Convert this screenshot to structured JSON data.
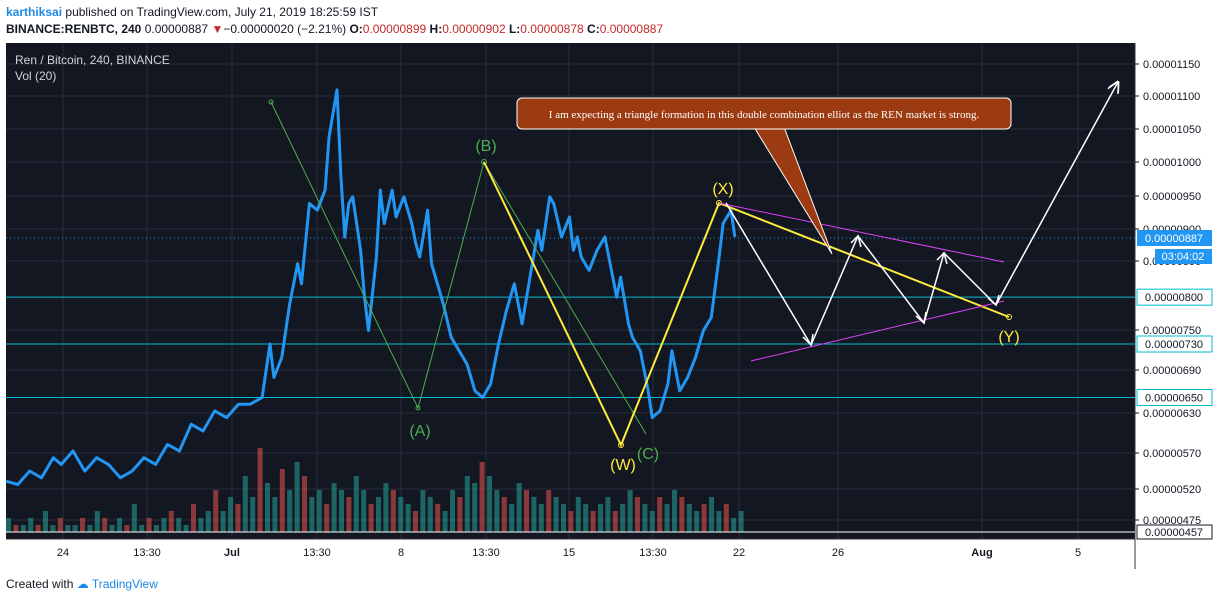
{
  "header": {
    "author": "karthiksai",
    "published_text": "published on TradingView.com, July 21, 2019 18:25:59 IST",
    "symbol": "BINANCE:RENBTC, 240",
    "last": "0.00000887",
    "change_arrow": "▼",
    "change": "−0.00000020 (−2.21%)",
    "o_label": "O:",
    "o": "0.00000899",
    "h_label": "H:",
    "h": "0.00000902",
    "l_label": "L:",
    "l": "0.00000878",
    "c_label": "C:",
    "c": "0.00000887"
  },
  "legend": {
    "title": "Ren / Bitcoin, 240, BINANCE",
    "volume": "Vol (20)"
  },
  "colors": {
    "price": "#2196f3",
    "wave_green": "#4caf50",
    "wave_yellow": "#ffeb3b",
    "triangle": "#e040fb",
    "support": "#00bcd4",
    "vol_up": "#26a69a",
    "vol_down": "#ef5350",
    "callout": "#9c3a12",
    "background": "#131722"
  },
  "chart_data": {
    "type": "line",
    "title": "Ren / Bitcoin, 240, BINANCE",
    "x_ticks": [
      "24",
      "13:30",
      "Jul",
      "13:30",
      "8",
      "13:30",
      "15",
      "13:30",
      "22",
      "26",
      "Aug",
      "5"
    ],
    "y_ticks": [
      "0.00001150",
      "0.00001100",
      "0.00001050",
      "0.00001000",
      "0.00000950",
      "0.00000900",
      "0.00000850",
      "0.00000750",
      "0.00000690",
      "0.00000630",
      "0.00000570",
      "0.00000520",
      "0.00000475"
    ],
    "ylim": [
      4.57e-06,
      1.18e-05
    ],
    "price_series": [
      [
        0,
        5.25e-06
      ],
      [
        3,
        5.2e-06
      ],
      [
        6,
        5.4e-06
      ],
      [
        9,
        5.3e-06
      ],
      [
        12,
        5.6e-06
      ],
      [
        14,
        5.5e-06
      ],
      [
        17,
        5.7e-06
      ],
      [
        20,
        5.4e-06
      ],
      [
        23,
        5.6e-06
      ],
      [
        26,
        5.5e-06
      ],
      [
        29,
        5.3e-06
      ],
      [
        32,
        5.4e-06
      ],
      [
        35,
        5.6e-06
      ],
      [
        38,
        5.5e-06
      ],
      [
        41,
        5.8e-06
      ],
      [
        44,
        5.7e-06
      ],
      [
        47,
        6.1e-06
      ],
      [
        50,
        6e-06
      ],
      [
        53,
        6.3e-06
      ],
      [
        56,
        6.2e-06
      ],
      [
        59,
        6.4e-06
      ],
      [
        62,
        6.4e-06
      ],
      [
        65,
        6.5e-06
      ],
      [
        67,
        7.3e-06
      ],
      [
        68,
        6.8e-06
      ],
      [
        70,
        7.1e-06
      ],
      [
        72,
        7.9e-06
      ],
      [
        74,
        8.5e-06
      ],
      [
        75,
        8.2e-06
      ],
      [
        77,
        9.4e-06
      ],
      [
        79,
        9.3e-06
      ],
      [
        81,
        9.6e-06
      ],
      [
        82,
        1.04e-05
      ],
      [
        84,
        1.11e-05
      ],
      [
        85,
        9.8e-06
      ],
      [
        86,
        8.9e-06
      ],
      [
        87,
        9.4e-06
      ],
      [
        88,
        9.5e-06
      ],
      [
        90,
        8.7e-06
      ],
      [
        91,
        8e-06
      ],
      [
        92,
        7.5e-06
      ],
      [
        94,
        8.6e-06
      ],
      [
        95,
        9.6e-06
      ],
      [
        96,
        9.1e-06
      ],
      [
        98,
        9.6e-06
      ],
      [
        99,
        9.2e-06
      ],
      [
        101,
        9.5e-06
      ],
      [
        103,
        9.1e-06
      ],
      [
        104,
        8.8e-06
      ],
      [
        105,
        8.6e-06
      ],
      [
        107,
        9.3e-06
      ],
      [
        108,
        8.5e-06
      ],
      [
        110,
        8.1e-06
      ],
      [
        111,
        7.9e-06
      ],
      [
        113,
        7.4e-06
      ],
      [
        115,
        7.2e-06
      ],
      [
        117,
        7e-06
      ],
      [
        119,
        6.6e-06
      ],
      [
        121,
        6.5e-06
      ],
      [
        123,
        6.7e-06
      ],
      [
        125,
        7.3e-06
      ],
      [
        127,
        7.8e-06
      ],
      [
        129,
        8.2e-06
      ],
      [
        131,
        7.6e-06
      ],
      [
        133,
        8.3e-06
      ],
      [
        135,
        9e-06
      ],
      [
        136,
        8.7e-06
      ],
      [
        138,
        9.5e-06
      ],
      [
        139,
        9.4e-06
      ],
      [
        141,
        8.9e-06
      ],
      [
        143,
        9.2e-06
      ],
      [
        144,
        8.7e-06
      ],
      [
        145,
        8.9e-06
      ],
      [
        146,
        8.6e-06
      ],
      [
        148,
        8.4e-06
      ],
      [
        150,
        8.7e-06
      ],
      [
        152,
        8.9e-06
      ],
      [
        153,
        8.6e-06
      ],
      [
        155,
        8e-06
      ],
      [
        156,
        8.3e-06
      ],
      [
        158,
        7.6e-06
      ],
      [
        159,
        7.4e-06
      ],
      [
        161,
        7.2e-06
      ],
      [
        163,
        6.6e-06
      ],
      [
        164,
        6.2e-06
      ],
      [
        166,
        6.3e-06
      ],
      [
        168,
        6.7e-06
      ],
      [
        169,
        7.2e-06
      ],
      [
        171,
        6.6e-06
      ],
      [
        173,
        6.8e-06
      ],
      [
        175,
        7.1e-06
      ],
      [
        177,
        7.5e-06
      ],
      [
        179,
        7.7e-06
      ],
      [
        181,
        8.6e-06
      ],
      [
        182,
        9.1e-06
      ],
      [
        184,
        9.3e-06
      ],
      [
        185,
        8.9e-06
      ]
    ],
    "volume_series": [
      2,
      1,
      1,
      2,
      1,
      3,
      1,
      2,
      1,
      1,
      2,
      1,
      3,
      2,
      1,
      2,
      1,
      4,
      1,
      2,
      1,
      2,
      3,
      2,
      1,
      4,
      2,
      3,
      6,
      3,
      5,
      4,
      8,
      5,
      12,
      7,
      5,
      9,
      6,
      10,
      8,
      5,
      6,
      4,
      7,
      6,
      5,
      8,
      6,
      4,
      5,
      7,
      6,
      5,
      4,
      3,
      6,
      5,
      4,
      3,
      6,
      5,
      8,
      7,
      10,
      8,
      6,
      5,
      4,
      7,
      6,
      5,
      4,
      6,
      5,
      4,
      3,
      5,
      4,
      3,
      4,
      5,
      3,
      4,
      6,
      5,
      4,
      3,
      5,
      4,
      6,
      5,
      4,
      3,
      4,
      5,
      3,
      4,
      2,
      3
    ],
    "horizontal_levels": [
      {
        "label": "0.00000800",
        "value": 8e-06
      },
      {
        "label": "0.00000730",
        "value": 7.3e-06
      },
      {
        "label": "0.00000650",
        "value": 6.5e-06
      }
    ],
    "last_price_label": "0.00000887",
    "countdown_label": "03:04:02",
    "bottom_price_label": "0.00000457",
    "wave_labels": [
      "(A)",
      "(B)",
      "(W)",
      "(C)",
      "(X)",
      "(Y)"
    ],
    "annotation": "I am expecting a triangle formation in this double combination elliot as the REN market is strong."
  },
  "footer": {
    "created_with": "Created with",
    "brand": "TradingView"
  }
}
